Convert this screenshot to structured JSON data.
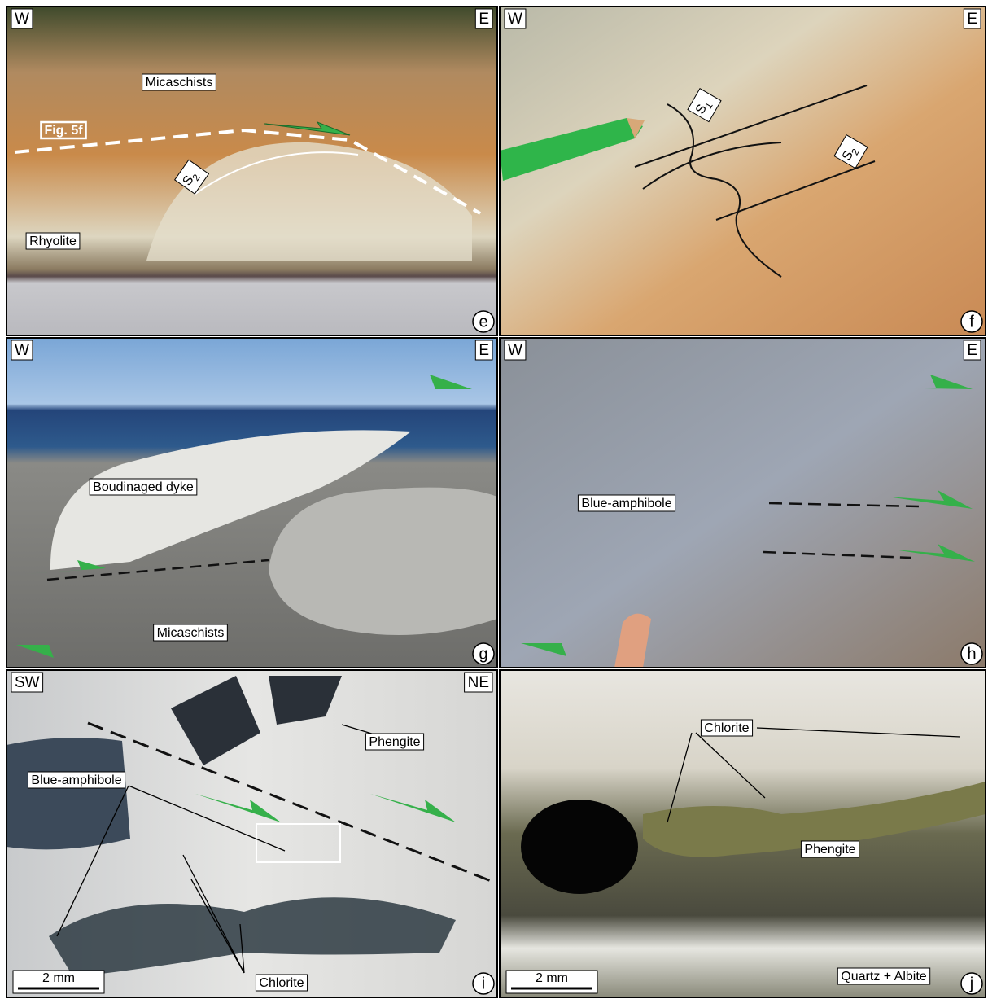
{
  "panels": [
    {
      "letter": "e",
      "corners": [
        "W",
        "E"
      ],
      "labels": [
        "Micaschists",
        "Fig. 5f",
        "Rhyolite"
      ],
      "foliations": [
        {
          "text": "S",
          "sub": "2"
        }
      ]
    },
    {
      "letter": "f",
      "corners": [
        "W",
        "E"
      ],
      "foliations": [
        {
          "text": "S",
          "sub": "1"
        },
        {
          "text": "S",
          "sub": "2"
        }
      ]
    },
    {
      "letter": "g",
      "corners": [
        "W",
        "E"
      ],
      "labels": [
        "Boudinaged dyke",
        "Micaschists"
      ]
    },
    {
      "letter": "h",
      "corners": [
        "W",
        "E"
      ],
      "labels": [
        "Blue-amphibole"
      ]
    },
    {
      "letter": "i",
      "corners": [
        "SW",
        "NE"
      ],
      "labels": [
        "Phengite",
        "Blue-amphibole",
        "Chlorite"
      ],
      "scale_bar": "2 mm"
    },
    {
      "letter": "j",
      "labels": [
        "Chlorite",
        "Phengite",
        "Quartz + Albite"
      ],
      "scale_bar": "2 mm"
    }
  ]
}
